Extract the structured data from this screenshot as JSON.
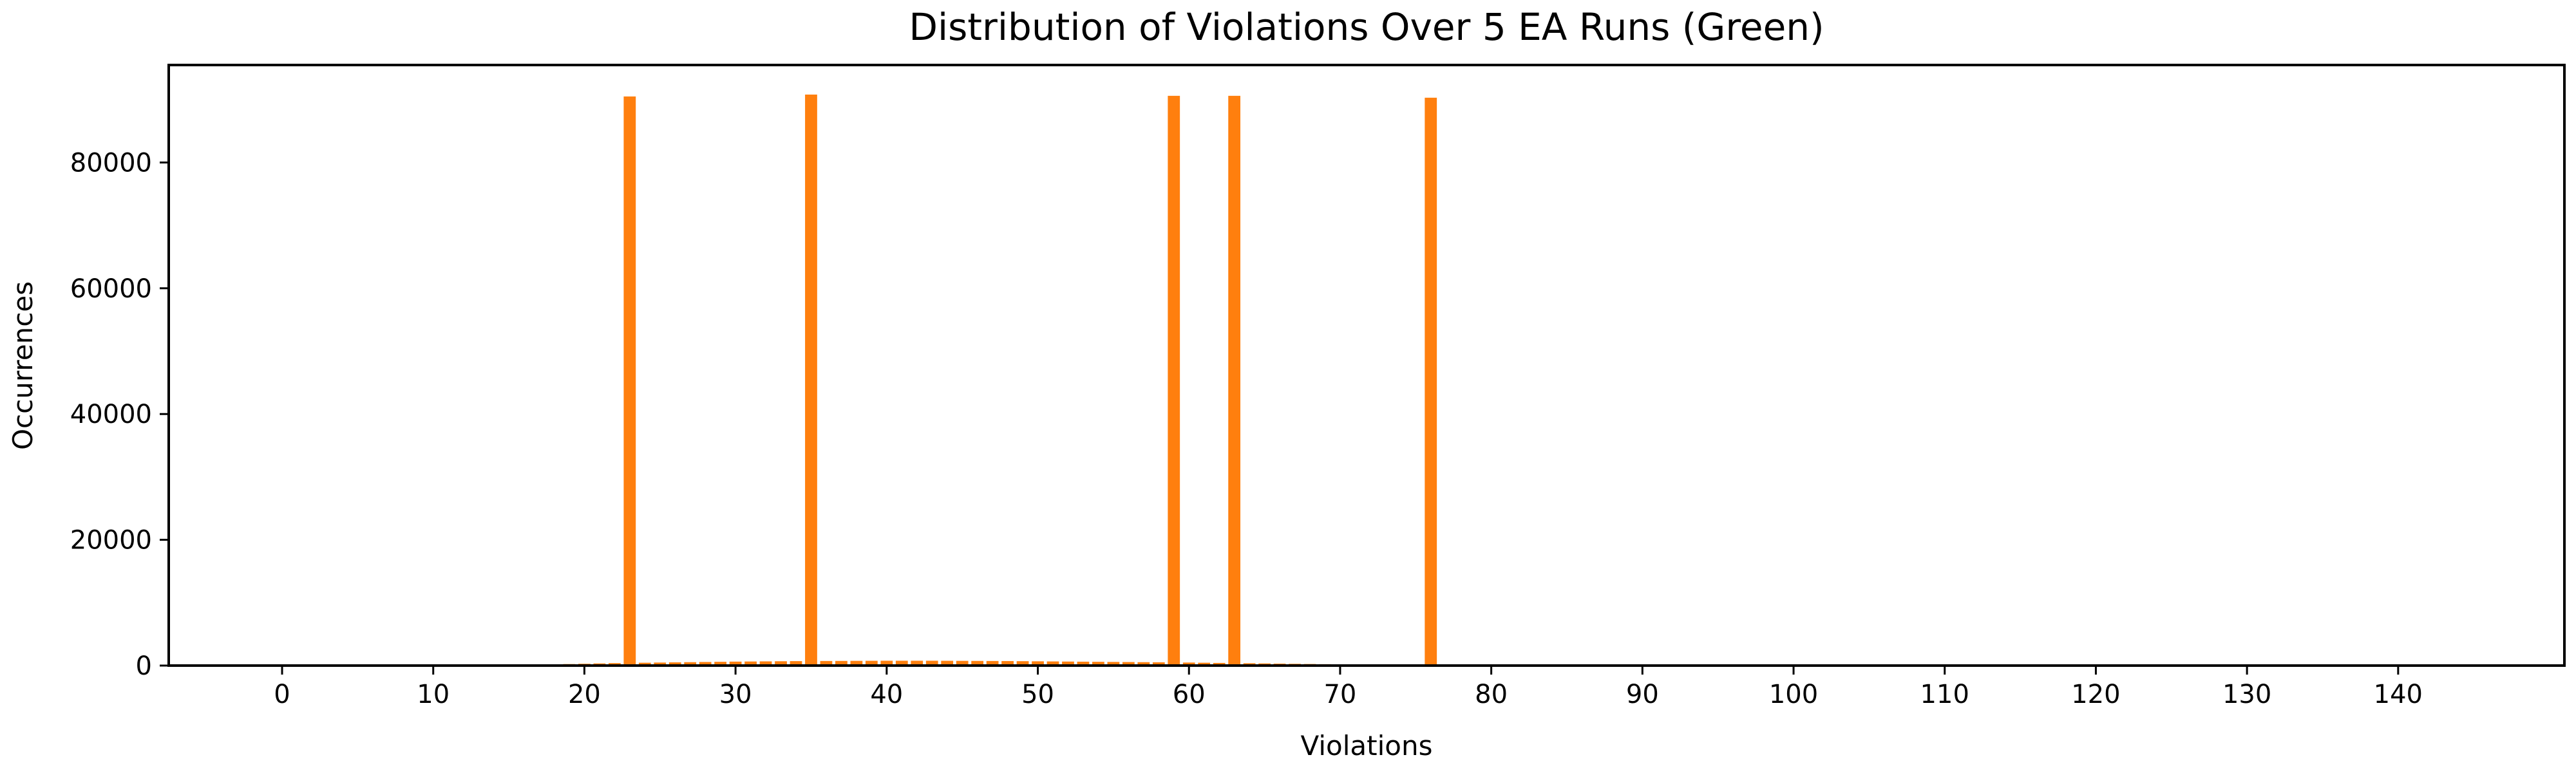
{
  "chart_data": {
    "type": "bar",
    "title": "Distribution of Violations Over 5 EA Runs (Green)",
    "xlabel": "Violations",
    "ylabel": "Occurrences",
    "xlim": [
      -7.5,
      151
    ],
    "ylim": [
      0,
      95500
    ],
    "xticks": [
      0,
      10,
      20,
      30,
      40,
      50,
      60,
      70,
      80,
      90,
      100,
      110,
      120,
      130,
      140
    ],
    "yticks": [
      0,
      20000,
      40000,
      60000,
      80000
    ],
    "bar_color": "#ff7f0e",
    "grid": false,
    "legend": "none",
    "x": [
      14,
      15,
      16,
      17,
      18,
      19,
      20,
      21,
      22,
      23,
      24,
      25,
      26,
      27,
      28,
      29,
      30,
      31,
      32,
      33,
      34,
      35,
      36,
      37,
      38,
      39,
      40,
      41,
      42,
      43,
      44,
      45,
      46,
      47,
      48,
      49,
      50,
      51,
      52,
      53,
      54,
      55,
      56,
      57,
      58,
      59,
      60,
      61,
      62,
      63,
      64,
      65,
      66,
      67,
      68,
      69,
      70,
      71,
      72,
      73,
      74,
      75,
      76,
      77,
      78
    ],
    "values": [
      50,
      80,
      110,
      150,
      190,
      240,
      290,
      340,
      390,
      90500,
      450,
      480,
      510,
      540,
      570,
      600,
      630,
      650,
      670,
      690,
      710,
      90800,
      730,
      740,
      750,
      760,
      770,
      770,
      770,
      770,
      760,
      750,
      740,
      730,
      720,
      700,
      680,
      660,
      640,
      620,
      600,
      580,
      560,
      540,
      520,
      90600,
      480,
      450,
      420,
      90600,
      370,
      340,
      310,
      280,
      250,
      220,
      190,
      160,
      130,
      110,
      90,
      70,
      90300,
      40,
      20
    ]
  }
}
